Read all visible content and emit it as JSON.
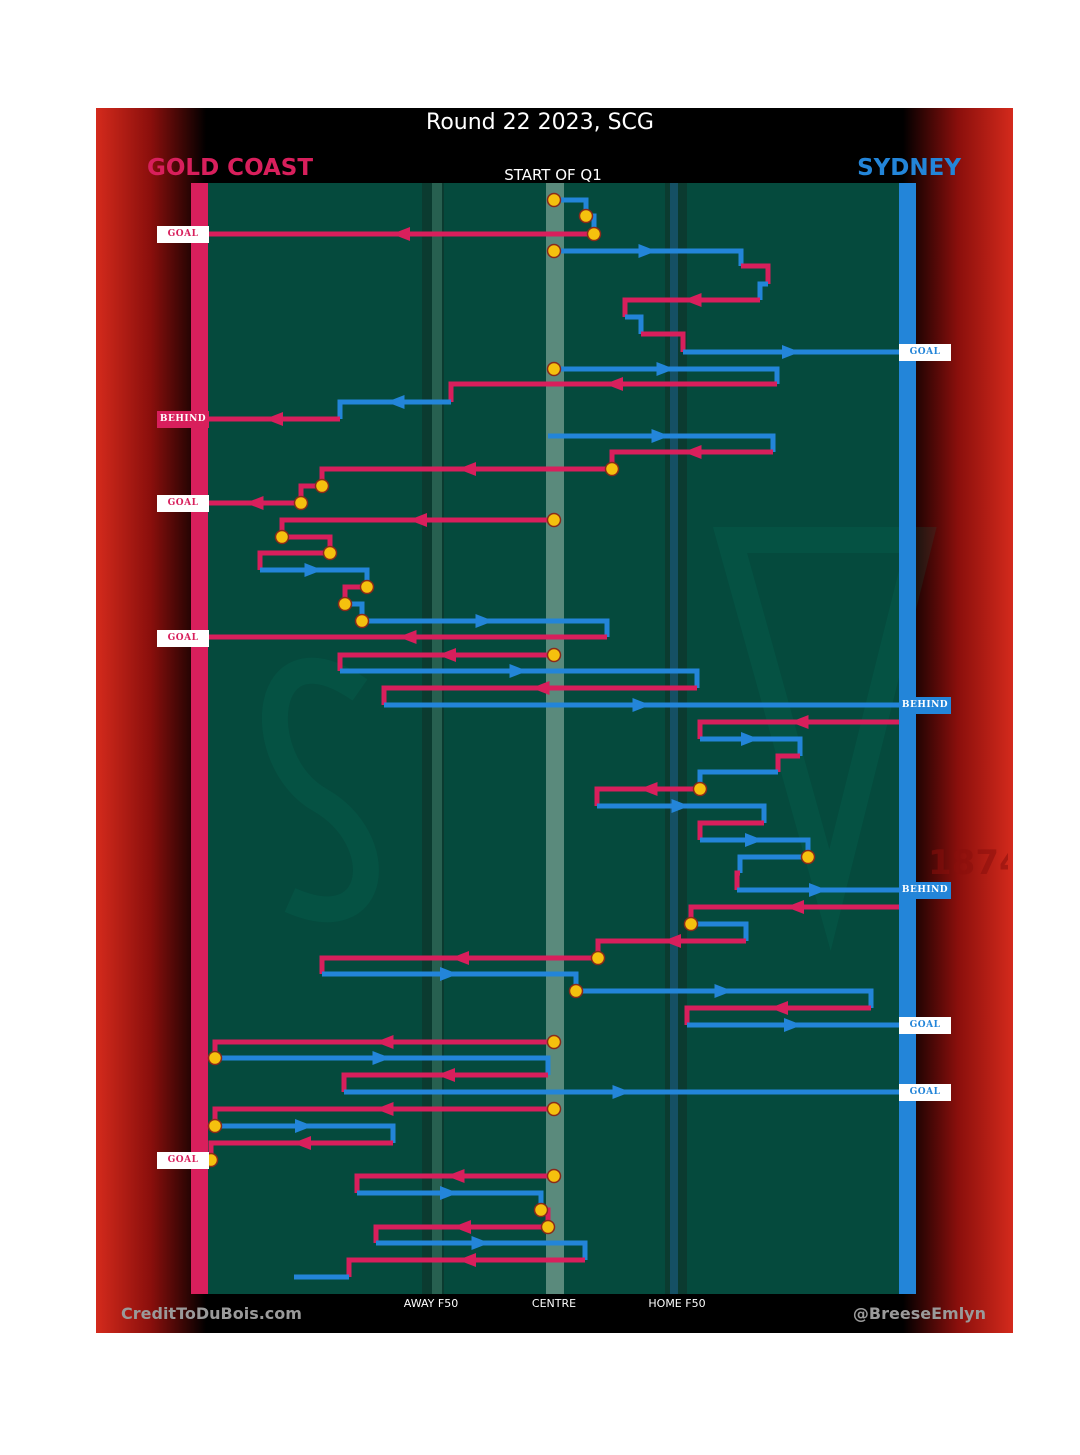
{
  "title": "Round 22 2023, SCG",
  "teams": {
    "away": "GOLD COAST",
    "home": "SYDNEY"
  },
  "start_label": "START OF Q1",
  "axis_labels": {
    "away": "AWAY F50",
    "centre": "CENTRE",
    "home": "HOME F50"
  },
  "credits": {
    "left": "CreditToDuBois.com",
    "right": "@BreeseEmlyn"
  },
  "colors": {
    "away": "#d81f5c",
    "home": "#2385d9",
    "field": "#054a3d",
    "ball_up": "#f5c10e"
  },
  "legend_watermark": "1874",
  "outcomes": {
    "away": [
      {
        "label": "GOAL",
        "kind": "goal"
      },
      {
        "label": "BEHIND",
        "kind": "behind"
      },
      {
        "label": "GOAL",
        "kind": "goal"
      },
      {
        "label": "GOAL",
        "kind": "goal"
      },
      {
        "label": "GOAL",
        "kind": "goal"
      }
    ],
    "home": [
      {
        "label": "GOAL",
        "kind": "goal"
      },
      {
        "label": "BEHIND",
        "kind": "behind"
      },
      {
        "label": "BEHIND",
        "kind": "behind"
      },
      {
        "label": "GOAL",
        "kind": "goal"
      },
      {
        "label": "GOAL",
        "kind": "goal"
      }
    ]
  }
}
